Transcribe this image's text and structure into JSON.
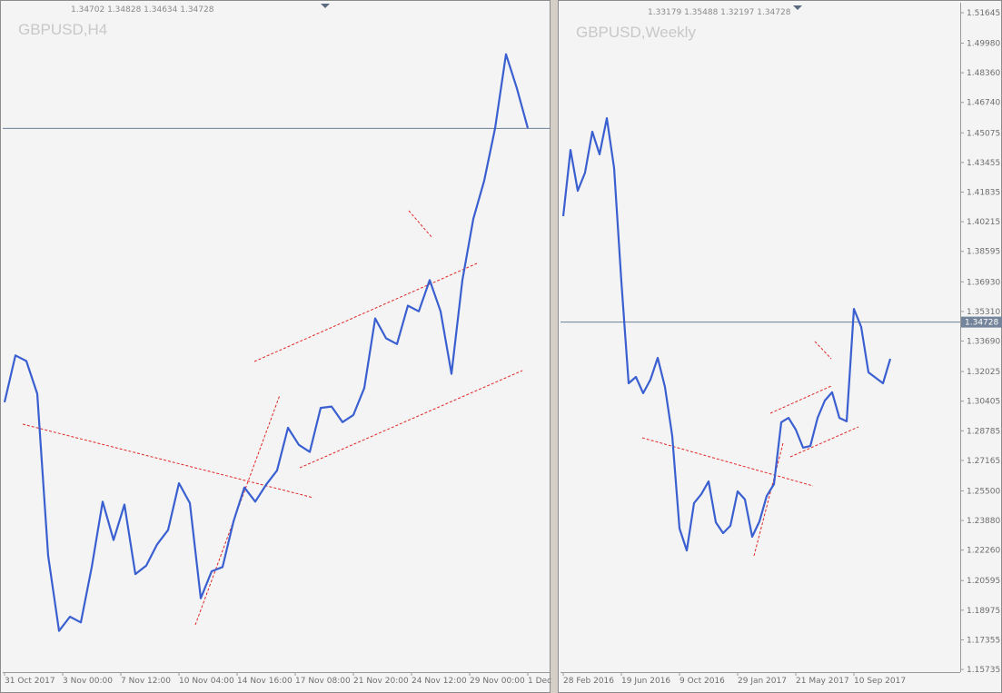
{
  "chart_data": [
    {
      "type": "line",
      "title": "GBPUSD,H4",
      "subtitle": "1.34702 1.34828 1.34634 1.34728",
      "color": "#3a5fd0",
      "x": [
        0,
        3,
        6,
        9,
        12,
        15,
        18,
        21,
        24,
        27,
        30,
        33,
        36,
        39,
        42,
        45,
        48,
        51,
        54,
        57,
        60,
        63,
        66,
        69,
        72,
        75,
        78,
        81,
        84,
        87,
        90,
        93,
        96,
        99,
        102,
        105,
        108,
        111,
        114,
        117,
        120,
        123,
        126,
        129,
        132,
        135,
        138,
        141,
        144
      ],
      "values": [
        1.328,
        1.3313,
        1.3309,
        1.3286,
        1.3172,
        1.3119,
        1.3129,
        1.3125,
        1.3164,
        1.321,
        1.3183,
        1.3208,
        1.3159,
        1.3165,
        1.318,
        1.319,
        1.3223,
        1.3209,
        1.3142,
        1.3161,
        1.3164,
        1.3196,
        1.322,
        1.321,
        1.3222,
        1.3232,
        1.3262,
        1.325,
        1.3245,
        1.3276,
        1.3277,
        1.3266,
        1.3271,
        1.329,
        1.3339,
        1.3325,
        1.3321,
        1.3348,
        1.3344,
        1.3366,
        1.3344,
        1.33,
        1.3366,
        1.3409,
        1.3436,
        1.3473,
        1.3525,
        1.3501,
        1.3473
      ],
      "xlim": [
        -0.5,
        150
      ],
      "xticks": [
        {
          "value": 0,
          "label": "31 Oct 2017"
        },
        {
          "value": 16,
          "label": "3 Nov 00:00"
        },
        {
          "value": 32,
          "label": "7 Nov 12:00"
        },
        {
          "value": 48,
          "label": "10 Nov 04:00"
        },
        {
          "value": 64,
          "label": "14 Nov 16:00"
        },
        {
          "value": 80,
          "label": "17 Nov 08:00"
        },
        {
          "value": 96,
          "label": "21 Nov 20:00"
        },
        {
          "value": 112,
          "label": "24 Nov 12:00"
        },
        {
          "value": 128,
          "label": "29 Nov 00:00"
        },
        {
          "value": 144,
          "label": "1 Dec"
        }
      ],
      "ylim": [
        1.309,
        1.356
      ],
      "hline": 1.34728
    },
    {
      "type": "line",
      "title": "GBPUSD,Weekly",
      "subtitle": "1.33179 1.35488 1.32197 1.34728",
      "color": "#3a5fd0",
      "x": [
        0,
        2,
        4,
        6,
        8,
        10,
        12,
        14,
        16,
        18,
        20,
        22,
        24,
        26,
        28,
        30,
        32,
        34,
        36,
        38,
        40,
        42,
        44,
        46,
        48,
        50,
        52,
        54,
        56,
        58,
        60,
        62,
        64,
        66,
        68,
        70,
        72,
        74,
        76,
        78,
        80,
        82,
        84,
        86,
        88,
        90
      ],
      "values": [
        1.4052,
        1.4414,
        1.4191,
        1.429,
        1.4514,
        1.439,
        1.4588,
        1.4315,
        1.3694,
        1.3138,
        1.3173,
        1.3084,
        1.3158,
        1.3277,
        1.3118,
        1.285,
        1.2344,
        1.2224,
        1.2483,
        1.2532,
        1.2602,
        1.2378,
        1.2319,
        1.2359,
        1.2547,
        1.2503,
        1.2299,
        1.2383,
        1.2522,
        1.2587,
        1.2925,
        1.2949,
        1.2885,
        1.2786,
        1.2795,
        1.2949,
        1.3044,
        1.3089,
        1.2949,
        1.293,
        1.3545,
        1.3446,
        1.3198,
        1.3168,
        1.3138,
        1.3272
      ],
      "xlim": [
        -0.75,
        109.25
      ],
      "xticks": [
        {
          "value": 0,
          "label": "28 Feb 2016"
        },
        {
          "value": 16,
          "label": "19 Jun 2016"
        },
        {
          "value": 32,
          "label": "9 Oct 2016"
        },
        {
          "value": 48,
          "label": "29 Jan 2017"
        },
        {
          "value": 64,
          "label": "21 May 2017"
        },
        {
          "value": 80,
          "label": "10 Sep 2017"
        }
      ],
      "ylim": [
        1.1559,
        1.5209
      ],
      "yticks": [
        1.51645,
        {
          "value": 1.4998,
          "label": "1.49980"
        },
        {
          "value": 1.4836,
          "label": "1.48360"
        },
        {
          "value": 1.4674,
          "label": "1.46740"
        },
        1.45075,
        1.43455,
        1.41835,
        1.40215,
        1.38595,
        {
          "value": 1.3693,
          "label": "1.36930"
        },
        {
          "value": 1.3531,
          "label": "1.35310"
        },
        {
          "value": 1.3369,
          "label": "1.33690"
        },
        1.32025,
        1.30405,
        1.28785,
        1.27165,
        {
          "value": 1.255,
          "label": "1.25500"
        },
        {
          "value": 1.2388,
          "label": "1.23880"
        },
        {
          "value": 1.2226,
          "label": "1.22260"
        },
        1.20595,
        1.18975,
        1.17355,
        1.15735
      ],
      "hline": 1.34728
    }
  ]
}
